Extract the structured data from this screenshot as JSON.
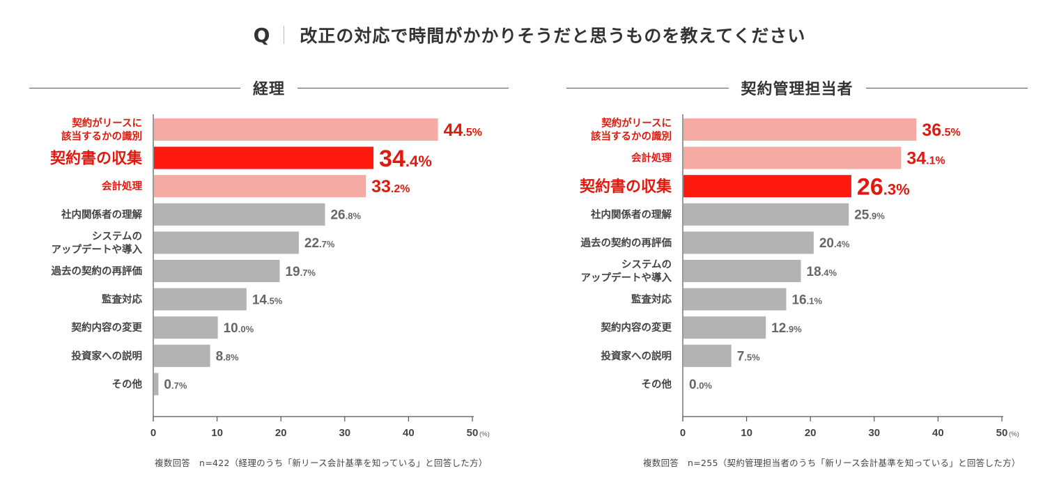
{
  "question": {
    "mark": "Q",
    "text": "改正の対応で時間がかかりそうだと思うものを教えてください"
  },
  "colors": {
    "top": "#ff1a0f",
    "highlight": "#f5aba3",
    "other": "#b3b3b3",
    "label_red": "#e0190f",
    "label_gray": "#444444",
    "value_gray": "#666666"
  },
  "chart_data": [
    {
      "type": "bar",
      "orientation": "horizontal",
      "title": "経理",
      "categories": [
        "契約がリースに\n該当するかの識別",
        "契約書の収集",
        "会計処理",
        "社内関係者の理解",
        "システムの\nアップデートや導入",
        "過去の契約の再評価",
        "監査対応",
        "契約内容の変更",
        "投資家への説明",
        "その他"
      ],
      "values": [
        44.5,
        34.4,
        33.2,
        26.8,
        22.7,
        19.7,
        14.5,
        10.0,
        8.8,
        0.7
      ],
      "styles": [
        "highlight",
        "top",
        "highlight",
        "other",
        "other",
        "other",
        "other",
        "other",
        "other",
        "other"
      ],
      "xlim": [
        0,
        50
      ],
      "xticks": [
        0,
        10,
        20,
        30,
        40,
        50
      ],
      "unit": "(%)",
      "note": "複数回答　n=422（経理のうち「新リース会計基準を知っている」と回答した方）"
    },
    {
      "type": "bar",
      "orientation": "horizontal",
      "title": "契約管理担当者",
      "categories": [
        "契約がリースに\n該当するかの識別",
        "会計処理",
        "契約書の収集",
        "社内関係者の理解",
        "過去の契約の再評価",
        "システムの\nアップデートや導入",
        "監査対応",
        "契約内容の変更",
        "投資家への説明",
        "その他"
      ],
      "values": [
        36.5,
        34.1,
        26.3,
        25.9,
        20.4,
        18.4,
        16.1,
        12.9,
        7.5,
        0.0
      ],
      "styles": [
        "highlight",
        "highlight",
        "top",
        "other",
        "other",
        "other",
        "other",
        "other",
        "other",
        "other"
      ],
      "xlim": [
        0,
        50
      ],
      "xticks": [
        0,
        10,
        20,
        30,
        40,
        50
      ],
      "unit": "(%)",
      "note": "複数回答　n=255（契約管理担当者のうち「新リース会計基準を知っている」と回答した方）"
    }
  ]
}
